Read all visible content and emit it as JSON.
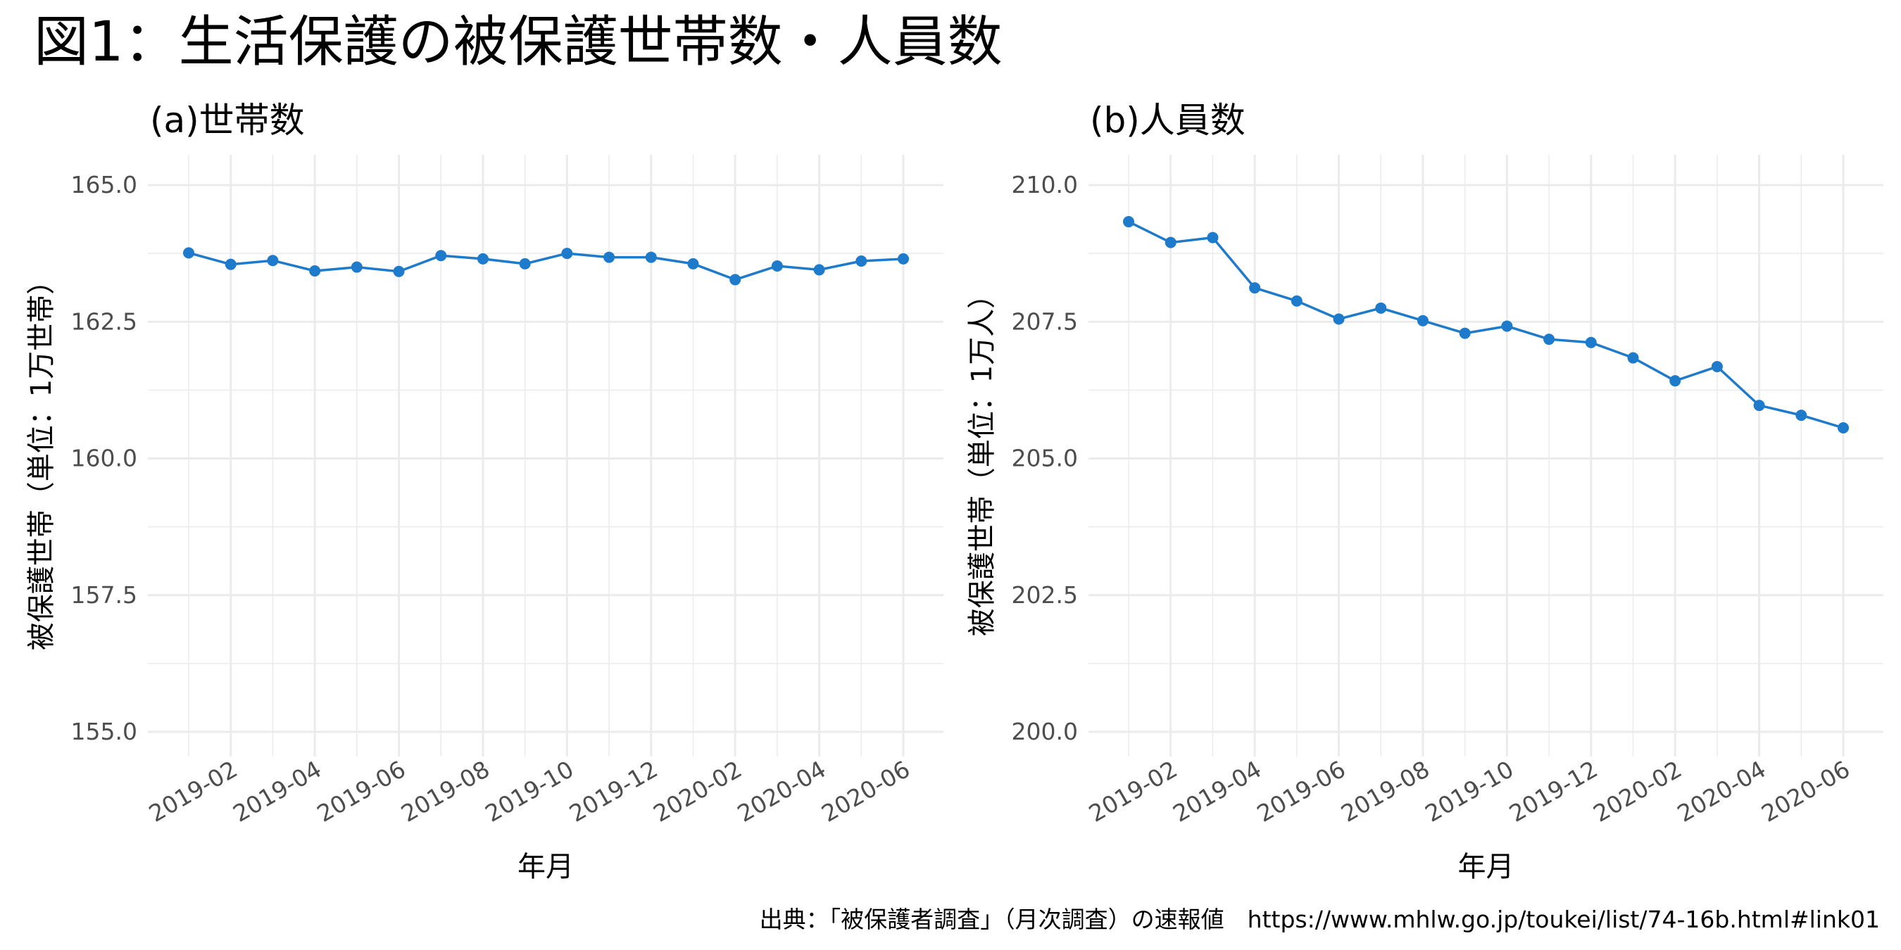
{
  "title": "図1：生活保護の被保護世帯数・人員数",
  "source_note": "出典：「被保護者調査」（月次調査）の速報値　https://www.mhlw.go.jp/toukei/list/74-16b.html#link01",
  "colors": {
    "series": "#1e7acb",
    "grid": "#ebebeb",
    "tick_text": "#4d4d4d"
  },
  "chart_data": [
    {
      "type": "line",
      "title": "(a)世帯数",
      "xlabel": "年月",
      "ylabel": "被保護世帯（単位：1万世帯）",
      "x": [
        "2019-01",
        "2019-02",
        "2019-03",
        "2019-04",
        "2019-05",
        "2019-06",
        "2019-07",
        "2019-08",
        "2019-09",
        "2019-10",
        "2019-11",
        "2019-12",
        "2020-01",
        "2020-02",
        "2020-03",
        "2020-04",
        "2020-05",
        "2020-06"
      ],
      "x_tick_labels": [
        "2019-02",
        "2019-04",
        "2019-06",
        "2019-08",
        "2019-10",
        "2019-12",
        "2020-02",
        "2020-04",
        "2020-06"
      ],
      "series": [
        {
          "values": [
            163.76,
            163.55,
            163.62,
            163.43,
            163.5,
            163.42,
            163.71,
            163.65,
            163.56,
            163.75,
            163.68,
            163.68,
            163.56,
            163.27,
            163.52,
            163.45,
            163.61,
            163.65
          ]
        }
      ],
      "ylim": [
        155.0,
        165.0
      ],
      "y_ticks": [
        "155.0",
        "157.5",
        "160.0",
        "162.5",
        "165.0"
      ],
      "grid": true,
      "marker": "circle"
    },
    {
      "type": "line",
      "title": "(b)人員数",
      "xlabel": "年月",
      "ylabel": "被保護世帯（単位：1万人）",
      "x": [
        "2019-01",
        "2019-02",
        "2019-03",
        "2019-04",
        "2019-05",
        "2019-06",
        "2019-07",
        "2019-08",
        "2019-09",
        "2019-10",
        "2019-11",
        "2019-12",
        "2020-01",
        "2020-02",
        "2020-03",
        "2020-04",
        "2020-05",
        "2020-06"
      ],
      "x_tick_labels": [
        "2019-02",
        "2019-04",
        "2019-06",
        "2019-08",
        "2019-10",
        "2019-12",
        "2020-02",
        "2020-04",
        "2020-06"
      ],
      "series": [
        {
          "values": [
            209.33,
            208.95,
            209.04,
            208.12,
            207.88,
            207.55,
            207.75,
            207.52,
            207.29,
            207.42,
            207.18,
            207.12,
            206.84,
            206.42,
            206.68,
            205.97,
            205.79,
            205.56
          ]
        }
      ],
      "ylim": [
        200.0,
        210.0
      ],
      "y_ticks": [
        "200.0",
        "202.5",
        "205.0",
        "207.5",
        "210.0"
      ],
      "grid": true,
      "marker": "circle"
    }
  ]
}
